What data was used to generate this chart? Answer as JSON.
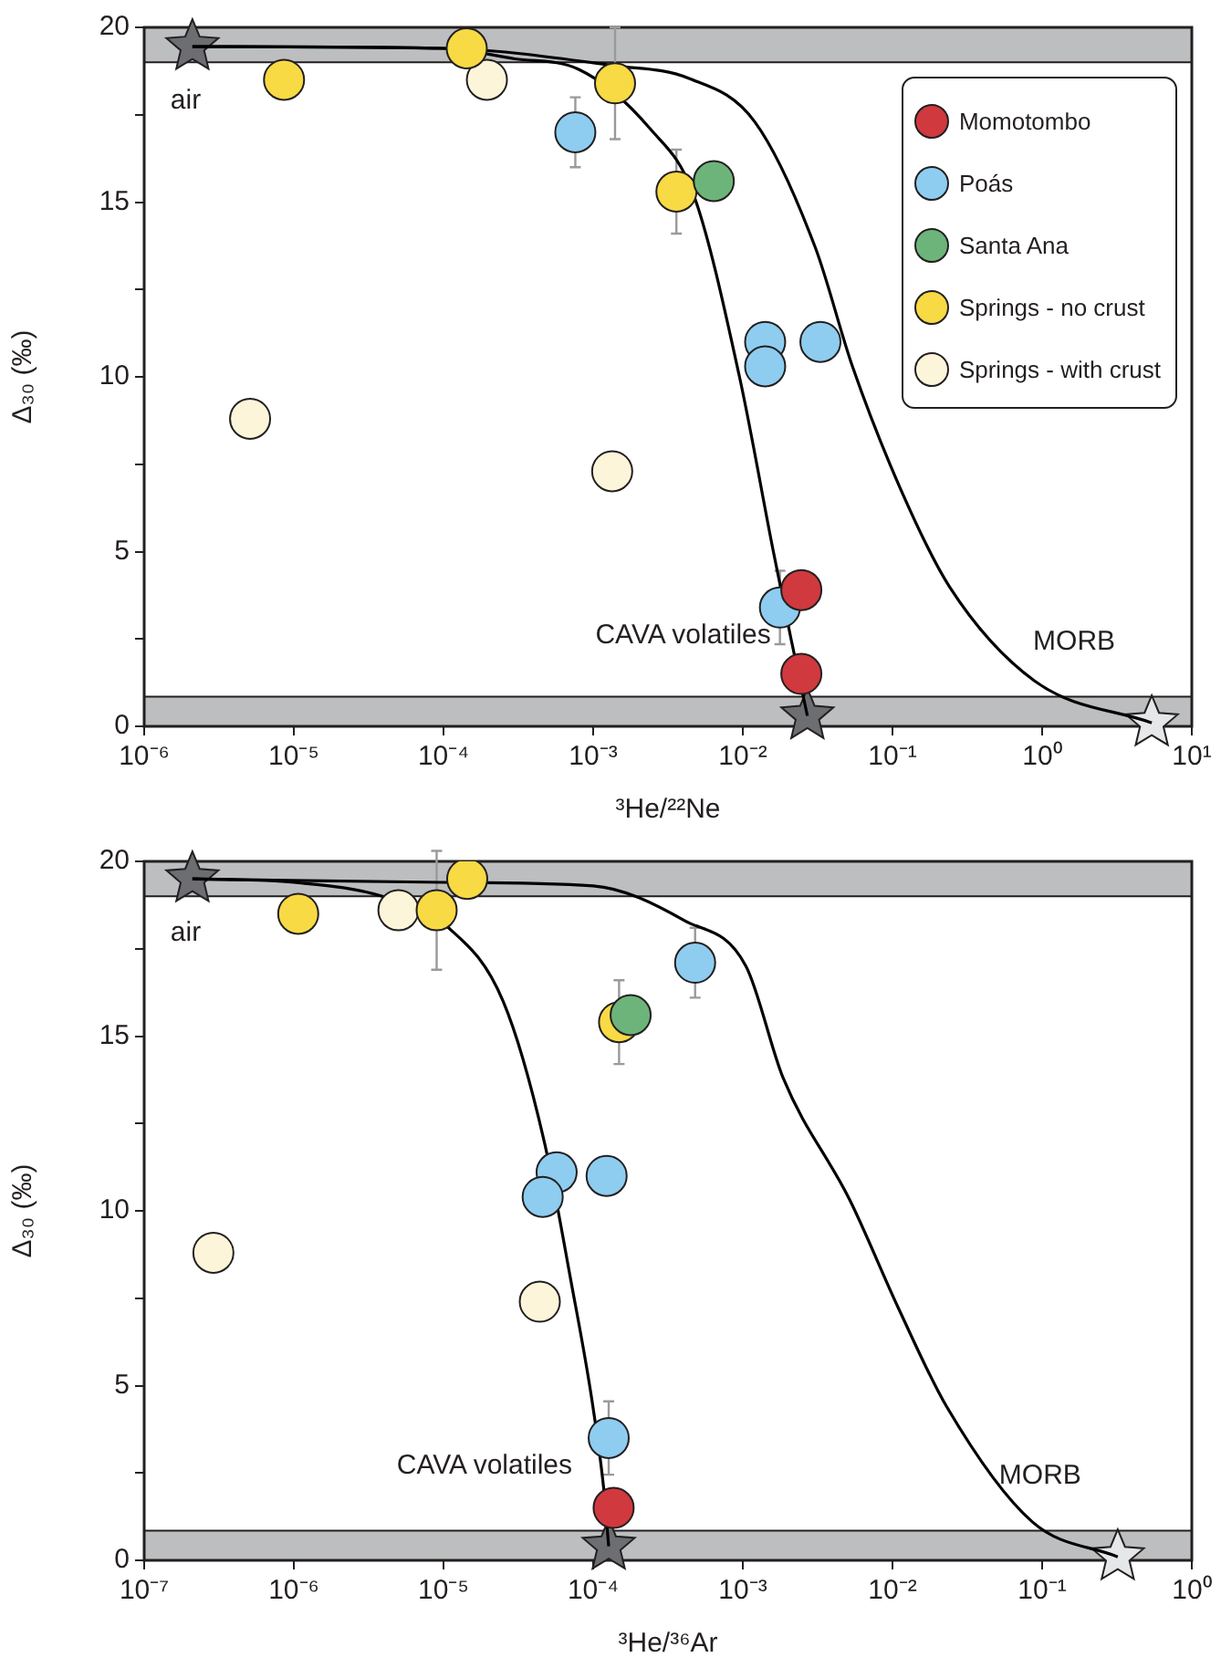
{
  "chart_data": [
    {
      "type": "scatter",
      "xlabel": "³He/²²Ne",
      "ylabel": "Δ₃₀ (‰)",
      "log": "x",
      "marker": "circle",
      "legend": "top right",
      "grid": false,
      "xlim": [
        1e-06,
        10
      ],
      "xticks": [
        {
          "value": 1e-06,
          "label": "10⁻⁶"
        },
        {
          "value": 1e-05,
          "label": "10⁻⁵"
        },
        {
          "value": 0.0001,
          "label": "10⁻⁴"
        },
        {
          "value": 0.001,
          "label": "10⁻³"
        },
        {
          "value": 0.01,
          "label": "10⁻²"
        },
        {
          "value": 0.1,
          "label": "10⁻¹"
        },
        {
          "value": 1,
          "label": "10⁰"
        },
        {
          "value": 10,
          "label": "10¹"
        }
      ],
      "ylim": [
        0,
        20
      ],
      "yticks": [
        0,
        {
          "value": 2.5,
          "label": null
        },
        5,
        {
          "value": 7.5,
          "label": null
        },
        10,
        {
          "value": 12.5,
          "label": null
        },
        15,
        {
          "value": 17.5,
          "label": null
        },
        20
      ],
      "bands": [
        {
          "axis": "y",
          "from": 19,
          "to": 20,
          "color": "#bcbec0"
        },
        {
          "axis": "y",
          "from": 0,
          "to": 0.85,
          "color": "#bcbec0"
        }
      ],
      "annotations": [
        {
          "text": "air",
          "x": 2.1e-06,
          "y": 19.45
        },
        {
          "text": "CAVA volatiles",
          "x": 0.027,
          "y": 0.3
        },
        {
          "text": "MORB",
          "x": 5.4,
          "y": 0.1
        }
      ],
      "series": [
        {
          "type": "line",
          "marker": "none",
          "color": "#000000",
          "x": [
            2.1e-06,
            0.0001,
            0.0003,
            0.0008,
            0.0024,
            0.0047,
            0.0095,
            0.016,
            0.021,
            0.027
          ],
          "values": [
            19.45,
            19.4,
            19.1,
            18.8,
            17.1,
            15.2,
            10,
            5,
            2.5,
            0.3
          ]
        },
        {
          "type": "line",
          "marker": "none",
          "color": "#000000",
          "x": [
            2.1e-06,
            0.0001,
            0.0014,
            0.0043,
            0.012,
            0.0305,
            0.054,
            0.113,
            0.24,
            0.89,
            5.4
          ],
          "values": [
            19.45,
            19.4,
            18.9,
            18.55,
            17.3,
            13.7,
            10.3,
            6.8,
            4.0,
            1.3,
            0.1
          ]
        },
        {
          "name": "Momotombo",
          "color": "#d0393e",
          "x": [
            0.0246,
            0.0246
          ],
          "values": [
            3.9,
            1.5
          ]
        },
        {
          "name": "Poás",
          "color": "#8ecdf0",
          "x": [
            0.00076,
            0.0141,
            0.0141,
            0.033,
            0.0177
          ],
          "values": [
            17.0,
            11.0,
            10.3,
            11.0,
            3.4
          ],
          "errors": [
            1.0,
            null,
            null,
            null,
            1.05
          ]
        },
        {
          "name": "Santa Ana",
          "color": "#6db47a",
          "x": [
            0.0064
          ],
          "values": [
            15.6
          ]
        },
        {
          "name": "Springs - no crust",
          "color": "#f7da44",
          "x": [
            8.6e-06,
            0.000143,
            0.0014,
            0.0036
          ],
          "values": [
            18.5,
            19.4,
            18.4,
            15.3
          ],
          "errors": [
            null,
            null,
            1.6,
            1.2
          ]
        },
        {
          "name": "Springs - with crust",
          "color": "#fdf5da",
          "x": [
            5.1e-06,
            0.000195,
            0.00134
          ],
          "values": [
            8.8,
            18.5,
            7.3
          ]
        },
        {
          "marker": "star",
          "colors": [
            "#6d6e71",
            "#6d6e71",
            "#e6e7e8"
          ],
          "x": [
            2.1e-06,
            0.027,
            5.4
          ],
          "values": [
            19.45,
            0.3,
            0.1
          ]
        }
      ]
    },
    {
      "type": "scatter",
      "xlabel": "³He/³⁶Ar",
      "ylabel": "Δ₃₀ (‰)",
      "log": "x",
      "marker": "circle",
      "grid": false,
      "xlim": [
        1e-07,
        1
      ],
      "xticks": [
        {
          "value": 1e-07,
          "label": "10⁻⁷"
        },
        {
          "value": 1e-06,
          "label": "10⁻⁶"
        },
        {
          "value": 1e-05,
          "label": "10⁻⁵"
        },
        {
          "value": 0.0001,
          "label": "10⁻⁴"
        },
        {
          "value": 0.001,
          "label": "10⁻³"
        },
        {
          "value": 0.01,
          "label": "10⁻²"
        },
        {
          "value": 0.1,
          "label": "10⁻¹"
        },
        {
          "value": 1,
          "label": "10⁰"
        }
      ],
      "ylim": [
        0,
        20
      ],
      "yticks": [
        0,
        {
          "value": 2.5,
          "label": null
        },
        5,
        {
          "value": 7.5,
          "label": null
        },
        10,
        {
          "value": 12.5,
          "label": null
        },
        15,
        {
          "value": 17.5,
          "label": null
        },
        20
      ],
      "bands": [
        {
          "axis": "y",
          "from": 19,
          "to": 20,
          "color": "#bcbec0"
        },
        {
          "axis": "y",
          "from": 0,
          "to": 0.85,
          "color": "#bcbec0"
        }
      ],
      "annotations": [
        {
          "text": "air",
          "x": 2.1e-07,
          "y": 19.5
        },
        {
          "text": "CAVA volatiles",
          "x": 0.000127,
          "y": 0.4
        },
        {
          "text": "MORB",
          "x": 0.32,
          "y": 0.1
        }
      ],
      "series": [
        {
          "type": "line",
          "marker": "none",
          "color": "#000000",
          "x": [
            2.1e-07,
            1e-06,
            3.9e-06,
            1.08e-05,
            2.5e-05,
            4.7e-05,
            7.1e-05,
            9.8e-05,
            0.000118,
            0.000127
          ],
          "values": [
            19.5,
            19.4,
            19.0,
            18.1,
            16.0,
            12.0,
            8.0,
            4.6,
            2.0,
            0.4
          ]
        },
        {
          "type": "line",
          "marker": "none",
          "color": "#000000",
          "x": [
            2.1e-07,
            1e-05,
            0.0001,
            0.00041,
            0.00105,
            0.00186,
            0.0052,
            0.011,
            0.023,
            0.086,
            0.32
          ],
          "values": [
            19.5,
            19.4,
            19.3,
            18.3,
            17.0,
            13.8,
            10.3,
            7.2,
            4.4,
            1.1,
            0.1
          ]
        },
        {
          "color": "#d0393e",
          "x": [
            0.000137
          ],
          "values": [
            1.5
          ]
        },
        {
          "color": "#8ecdf0",
          "x": [
            0.00048,
            5.7e-05,
            4.6e-05,
            0.000123,
            0.000127
          ],
          "values": [
            17.1,
            11.1,
            10.4,
            11.0,
            3.5
          ],
          "errors": [
            1.0,
            null,
            null,
            null,
            1.05
          ]
        },
        {
          "color": "#6db47a",
          "x": [
            0.000178
          ],
          "values": [
            15.6
          ]
        },
        {
          "color": "#f7da44",
          "x": [
            1.07e-06,
            9e-06,
            1.44e-05,
            0.000149
          ],
          "values": [
            18.5,
            18.6,
            19.5,
            15.4
          ],
          "errors": [
            null,
            1.7,
            null,
            1.2
          ]
        },
        {
          "color": "#fdf5da",
          "x": [
            2.9e-07,
            5e-06,
            4.4e-05
          ],
          "values": [
            8.8,
            18.6,
            7.4
          ]
        },
        {
          "marker": "star",
          "colors": [
            "#6d6e71",
            "#6d6e71",
            "#e6e7e8"
          ],
          "x": [
            2.1e-07,
            0.000127,
            0.32
          ],
          "values": [
            19.5,
            0.4,
            0.1
          ]
        }
      ]
    }
  ]
}
